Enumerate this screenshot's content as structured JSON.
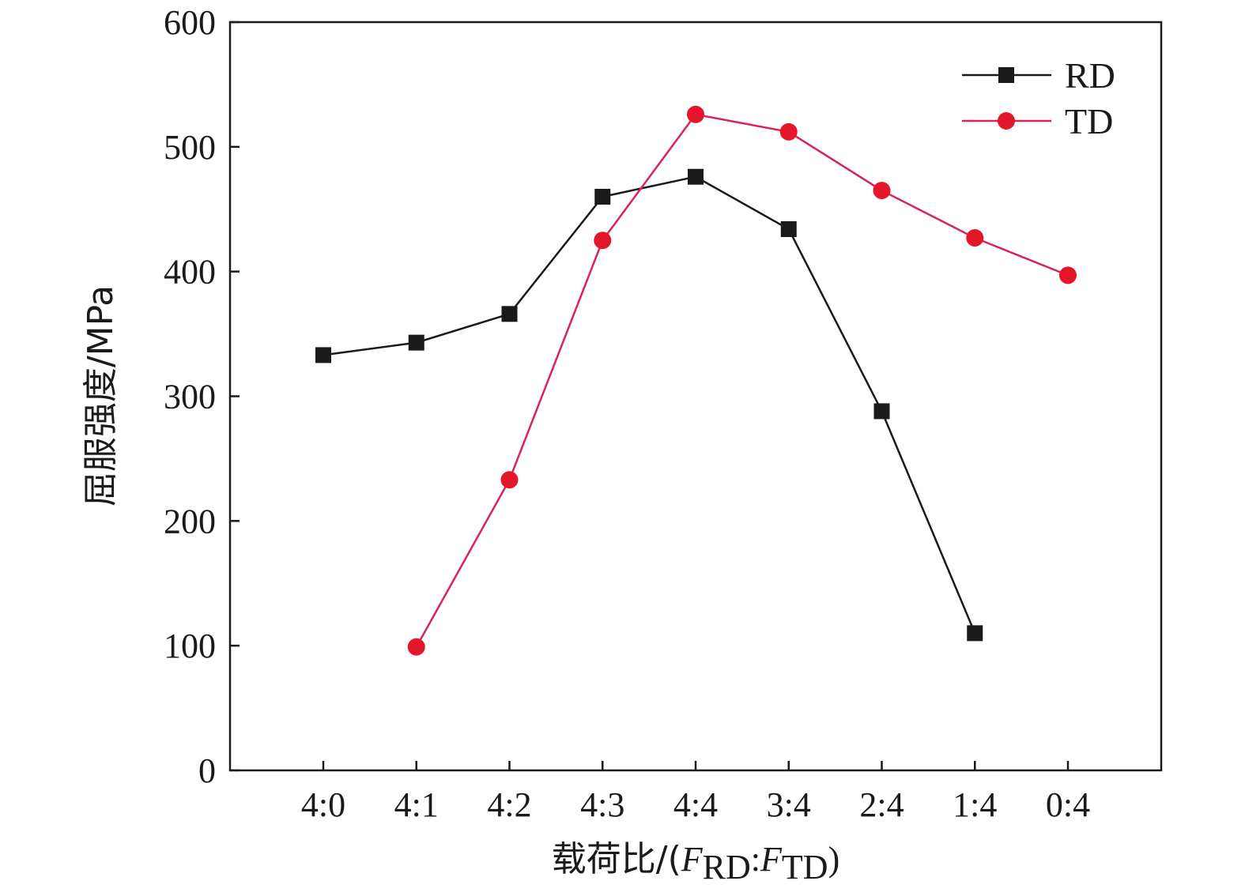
{
  "chart_data": {
    "type": "line",
    "title": "",
    "xlabel": {
      "prefix": "载荷比/(",
      "f1": "F",
      "sub1": "RD",
      "sep": ":",
      "f2": "F",
      "sub2": "TD",
      "suffix": ")"
    },
    "ylabel": "屈服强度/MPa",
    "categories": [
      "4:0",
      "4:1",
      "4:2",
      "4:3",
      "4:4",
      "3:4",
      "2:4",
      "1:4",
      "0:4"
    ],
    "yticks": [
      "0",
      "100",
      "200",
      "300",
      "400",
      "500",
      "600"
    ],
    "ylim": [
      0,
      600
    ],
    "grid": false,
    "legend_position": "top-right",
    "series": [
      {
        "name": "RD",
        "marker": "square",
        "color": "#1a1a1a",
        "marker_color": "#1a1a1a",
        "values": [
          333,
          343,
          366,
          460,
          476,
          434,
          288,
          110,
          null
        ]
      },
      {
        "name": "TD",
        "marker": "circle",
        "color": "#d6245a",
        "marker_color": "#e4162a",
        "values": [
          null,
          99,
          233,
          425,
          526,
          512,
          465,
          427,
          397
        ]
      }
    ]
  }
}
